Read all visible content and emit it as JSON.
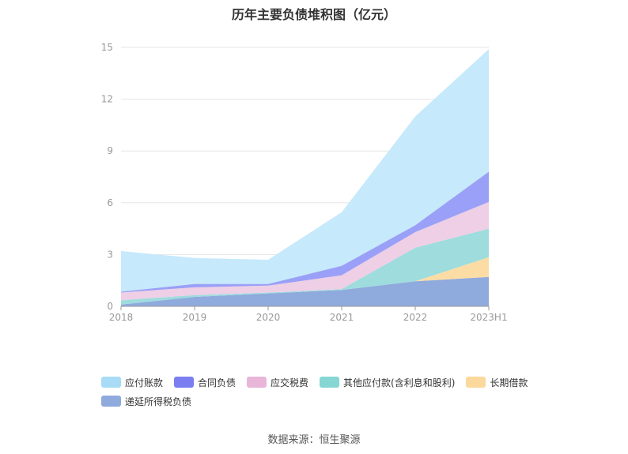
{
  "chart_data": {
    "type": "area",
    "stacked": true,
    "title": "历年主要负债堆积图（亿元）",
    "categories": [
      "2018",
      "2019",
      "2020",
      "2021",
      "2022",
      "2023H1"
    ],
    "ylim": [
      0,
      15
    ],
    "yticks": [
      0,
      3,
      6,
      9,
      12,
      15
    ],
    "grid": true,
    "legend_position": "bottom",
    "series": [
      {
        "name": "递延所得税负债",
        "color": "#8faadc",
        "values": [
          0.1,
          0.55,
          0.75,
          0.95,
          1.45,
          1.7
        ]
      },
      {
        "name": "长期借款",
        "color": "#fcdca5",
        "values": [
          0,
          0,
          0,
          0,
          0,
          1.15
        ]
      },
      {
        "name": "其他应付款(含利息和股利)",
        "color": "#9edcdd",
        "values": [
          0.25,
          0.1,
          0.05,
          0.05,
          1.95,
          1.65
        ]
      },
      {
        "name": "应交税费",
        "color": "#eecfe6",
        "values": [
          0.45,
          0.45,
          0.4,
          0.8,
          0.9,
          1.55
        ]
      },
      {
        "name": "合同负债",
        "color": "#9aa0f7",
        "values": [
          0.05,
          0.2,
          0.1,
          0.55,
          0.4,
          1.75
        ]
      },
      {
        "name": "应付账款",
        "color": "#c6e9fb",
        "values": [
          2.35,
          1.5,
          1.4,
          3.1,
          6.3,
          7.1
        ]
      }
    ]
  },
  "legend": {
    "row1": [
      {
        "name": "应付账款",
        "color": "#a8dcf6"
      },
      {
        "name": "合同负债",
        "color": "#7b7ef0"
      },
      {
        "name": "应交税费",
        "color": "#e8b6d9"
      },
      {
        "name": "其他应付款(含利息和股利)",
        "color": "#86d6d4"
      },
      {
        "name": "长期借款",
        "color": "#fbd89b"
      }
    ],
    "row2": [
      {
        "name": "递延所得税负债",
        "color": "#8faadc"
      }
    ]
  },
  "source": "数据来源：恒生聚源"
}
